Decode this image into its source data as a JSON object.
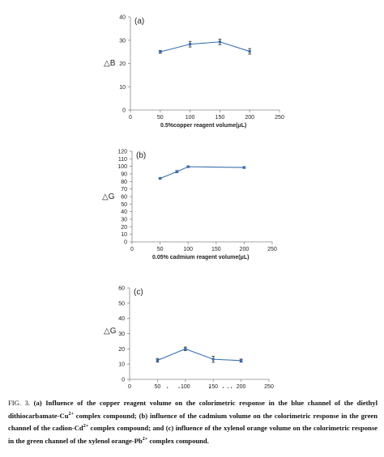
{
  "chart_data": [
    {
      "type": "line",
      "panel_label": "(a)",
      "ylabel": "△B",
      "xlabel": "0.5%copper reagent volume(μL)",
      "xlim": [
        0,
        250
      ],
      "ylim": [
        0,
        40
      ],
      "xticks": [
        0,
        50,
        100,
        150,
        200,
        250
      ],
      "yticks": [
        0,
        10,
        20,
        30,
        40
      ],
      "series": [
        {
          "x": [
            50,
            100,
            150,
            200
          ],
          "y": [
            25,
            28.3,
            29.3,
            25.2
          ],
          "err": [
            0.6,
            1.2,
            1.2,
            1.2
          ]
        }
      ],
      "color": "#3a6fb0",
      "grid": false
    },
    {
      "type": "line",
      "panel_label": "(b)",
      "ylabel": "△G",
      "xlabel": "0.05% cadmium  reagent volume(μL)",
      "xlim": [
        0,
        250
      ],
      "ylim": [
        0,
        120
      ],
      "xticks": [
        0,
        50,
        100,
        150,
        200,
        250
      ],
      "yticks": [
        0,
        10,
        20,
        30,
        40,
        50,
        60,
        70,
        80,
        90,
        100,
        110,
        120
      ],
      "series": [
        {
          "x": [
            50,
            80,
            100,
            200
          ],
          "y": [
            84,
            93,
            99.5,
            98.5
          ],
          "err": [
            0.5,
            1.5,
            0.8,
            1.2
          ]
        }
      ],
      "color": "#3a6fb0",
      "grid": false
    },
    {
      "type": "line",
      "panel_label": "(c)",
      "ylabel": "△G",
      "xlabel": "xylenol  orange  volume(μL)",
      "xlim": [
        0,
        250
      ],
      "ylim": [
        0,
        60
      ],
      "xticks": [
        0,
        50,
        100,
        150,
        200,
        250
      ],
      "yticks": [
        0,
        10,
        20,
        30,
        40,
        50,
        60
      ],
      "series": [
        {
          "x": [
            50,
            100,
            150,
            200
          ],
          "y": [
            12.5,
            20,
            13.2,
            12.3
          ],
          "err": [
            1.2,
            1.2,
            2.0,
            1.0
          ]
        }
      ],
      "color": "#3a6fb0",
      "grid": false
    }
  ],
  "caption": {
    "figure_label": "FIG. 3.",
    "part1": "(a) Influence of the copper reagent volume on the colorimetric response in the blue channel of the diethyl dithiocarbamate-Cu",
    "sup1": "2+",
    "part2": " complex compound; (b) influence of the cadmium volume on the colorimetric response in the green channel of the cadion-Cd",
    "sup2": "2+",
    "part3": " complex compound; and (c) influence of the xylenol orange volume on the colorimetric response in the green channel of the xylenol orange-Pb",
    "sup3": "2+",
    "part4": " complex compound."
  }
}
